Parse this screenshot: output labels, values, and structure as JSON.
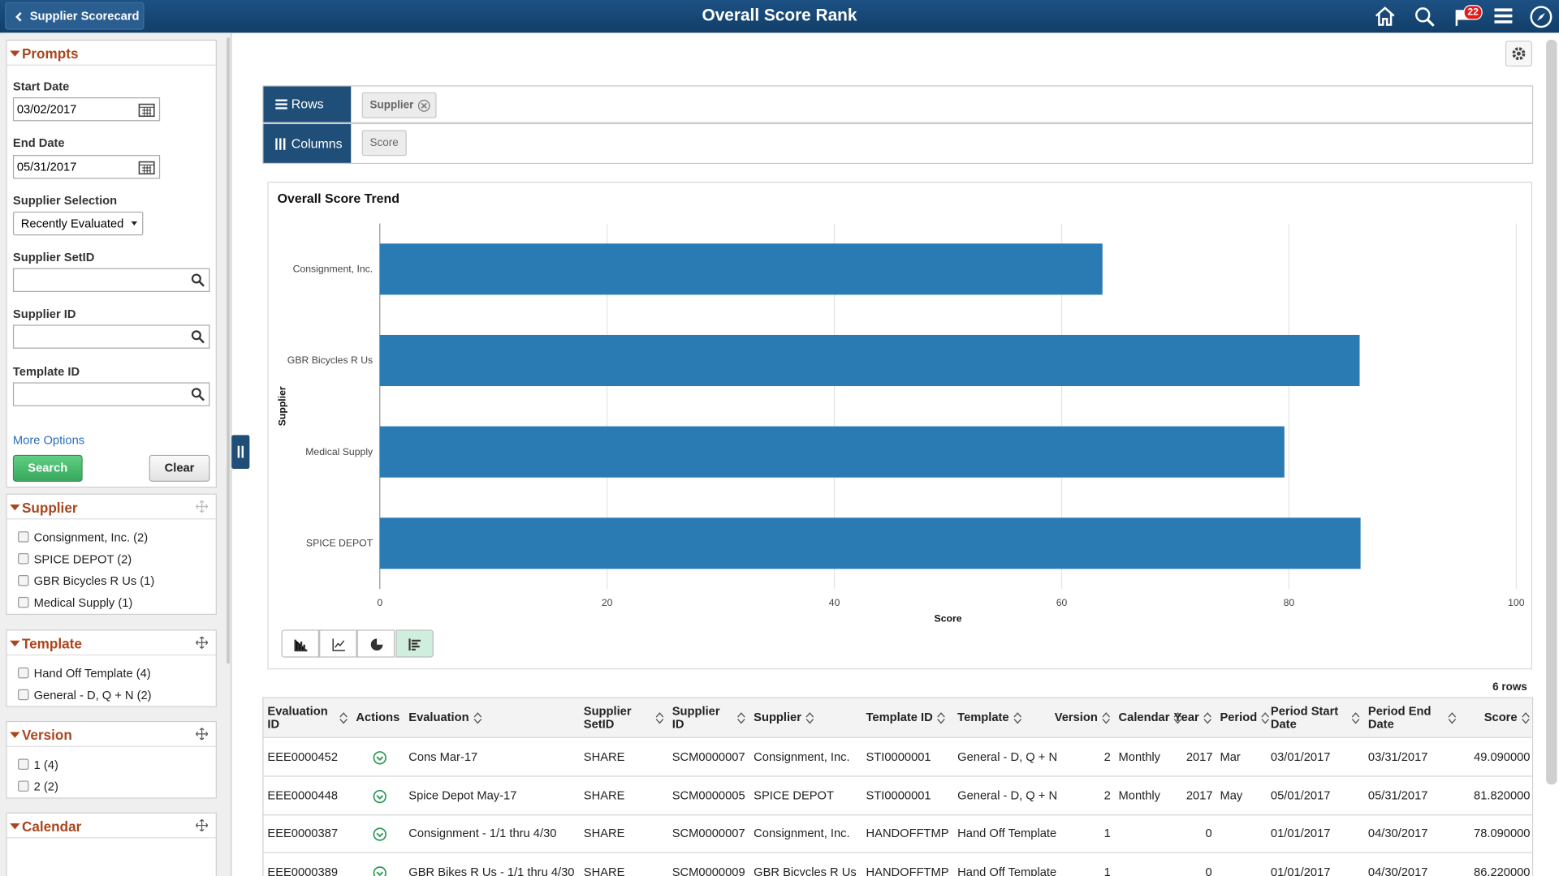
{
  "header": {
    "back_button": "Supplier Scorecard",
    "title": "Overall Score Rank",
    "notification_count": "22"
  },
  "prompts": {
    "title": "Prompts",
    "fields": [
      {
        "label": "Start Date",
        "value": "03/02/2017"
      },
      {
        "label": "End Date",
        "value": "05/31/2017"
      },
      {
        "label": "Supplier Selection",
        "value": "Recently Evaluated"
      },
      {
        "label": "Supplier SetID"
      },
      {
        "label": "Supplier ID"
      },
      {
        "label": "Template ID"
      }
    ],
    "more_options": "More Options",
    "search": "Search",
    "clear": "Clear"
  },
  "facets": [
    {
      "title": "Supplier",
      "options": [
        "Consignment, Inc. (2)",
        "SPICE DEPOT (2)",
        "GBR Bicycles R Us (1)",
        "Medical Supply (1)"
      ]
    },
    {
      "title": "Template",
      "options": [
        "Hand Off Template (4)",
        "General - D, Q + N (2)"
      ]
    },
    {
      "title": "Version",
      "options": [
        "1 (4)",
        "2 (2)"
      ]
    },
    {
      "title": "Calendar"
    }
  ],
  "pivot": {
    "rows_label": "Rows",
    "rows_chip": "Supplier",
    "columns_label": "Columns",
    "columns_chip": "Score"
  },
  "chart_data": {
    "type": "bar",
    "orientation": "horizontal",
    "title": "Overall Score Trend",
    "x_label": "Score",
    "y_label": "Supplier",
    "categories": [
      "Consignment, Inc.",
      "GBR Bicycles R Us",
      "Medical Supply",
      "SPICE DEPOT"
    ],
    "values": [
      63.59,
      86.22,
      79.6,
      86.3
    ],
    "color": "#2a7ab4",
    "xlim": [
      0,
      100
    ],
    "xticks": [
      0,
      20,
      40,
      60,
      80,
      100
    ],
    "grid": true
  },
  "table": {
    "row_count": "6 rows",
    "columns": [
      "Evaluation ID",
      "Actions",
      "Evaluation",
      "Supplier SetID",
      "Supplier ID",
      "Supplier",
      "Template ID",
      "Template",
      "Version",
      "Calendar",
      "Year",
      "Period",
      "Period Start Date",
      "Period End Date",
      "Score"
    ],
    "rows": [
      [
        "EEE0000452",
        null,
        "Cons Mar-17",
        "SHARE",
        "SCM0000007",
        "Consignment, Inc.",
        "STI0000001",
        "General - D, Q + N",
        "2",
        "Monthly",
        "2017",
        "Mar",
        "03/01/2017",
        "03/31/2017",
        "49.090000"
      ],
      [
        "EEE0000448",
        null,
        "Spice Depot May-17",
        "SHARE",
        "SCM0000005",
        "SPICE DEPOT",
        "STI0000001",
        "General - D, Q + N",
        "2",
        "Monthly",
        "2017",
        "May",
        "05/01/2017",
        "05/31/2017",
        "81.820000"
      ],
      [
        "EEE0000387",
        null,
        "Consignment - 1/1 thru 4/30",
        "SHARE",
        "SCM0000007",
        "Consignment, Inc.",
        "HANDOFFTMP",
        "Hand Off Template",
        "1",
        null,
        "0",
        null,
        "01/01/2017",
        "04/30/2017",
        "78.090000"
      ],
      [
        "EEE0000389",
        null,
        "GBR Bikes R Us - 1/1 thru 4/30",
        "SHARE",
        "SCM0000009",
        "GBR Bicycles R Us",
        "HANDOFFTMP",
        "Hand Off Template",
        "1",
        null,
        "0",
        null,
        "01/01/2017",
        "04/30/2017",
        "86.220000"
      ]
    ]
  }
}
